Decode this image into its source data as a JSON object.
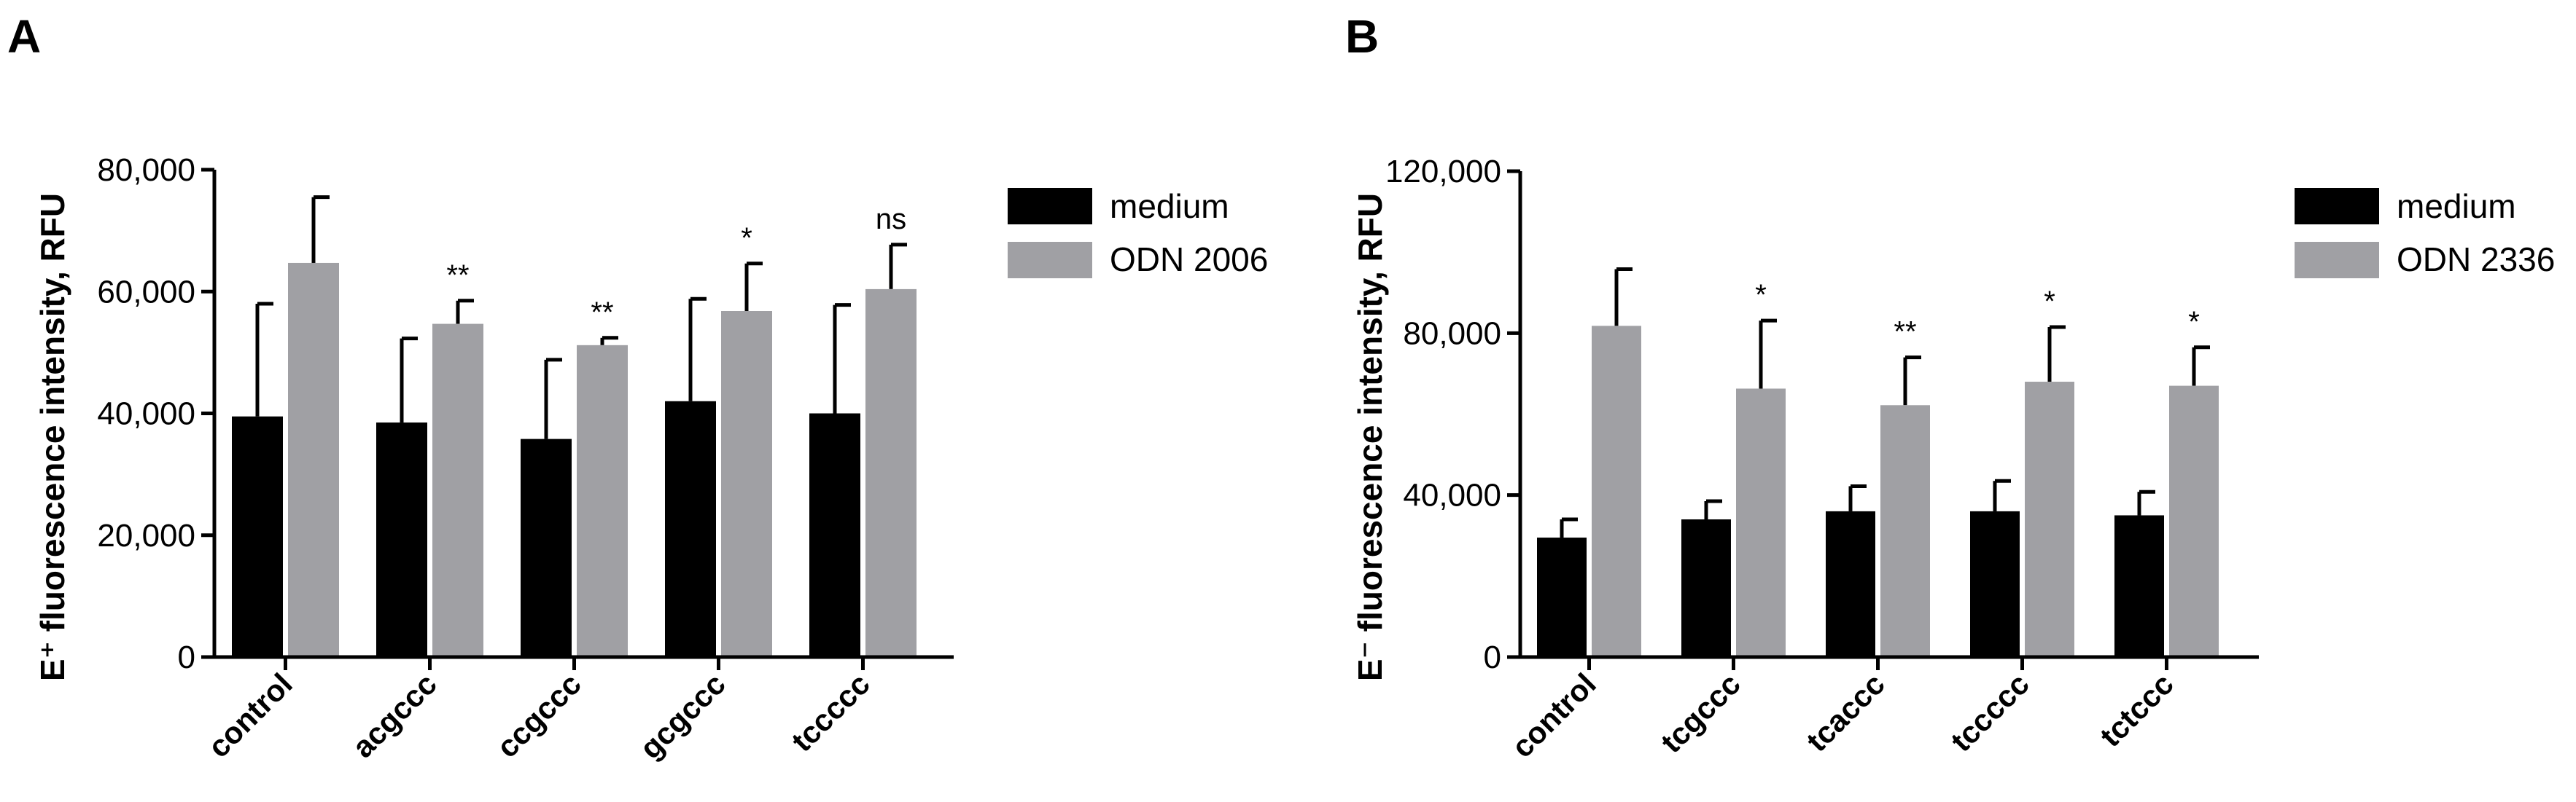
{
  "chart_data": [
    {
      "type": "bar",
      "panel_label": "A",
      "ylabel": "E⁺ fluorescence intensity, RFU",
      "ylim": [
        0,
        80000
      ],
      "y_ticks": [
        0,
        20000,
        40000,
        60000,
        80000
      ],
      "y_tick_labels": [
        "0",
        "20,000",
        "40,000",
        "60,000",
        "80,000"
      ],
      "categories": [
        "control",
        "acgccc",
        "ccgccc",
        "gcgccc",
        "tccccc"
      ],
      "series": [
        {
          "name": "medium",
          "color": "#000000",
          "values": [
            39500,
            38500,
            35800,
            42000,
            40000
          ],
          "errors": [
            18500,
            13800,
            13000,
            16800,
            17800
          ]
        },
        {
          "name": "ODN 2006",
          "color": "#a0a0a4",
          "values": [
            64700,
            54700,
            51200,
            56800,
            60400
          ],
          "errors": [
            10800,
            3800,
            1200,
            7800,
            7300
          ]
        }
      ],
      "annotations": [
        "",
        "**",
        "**",
        "*",
        "ns"
      ],
      "legend": [
        "medium",
        "ODN 2006"
      ]
    },
    {
      "type": "bar",
      "panel_label": "B",
      "ylabel": "E⁻ fluorescence intensity, RFU",
      "ylim": [
        0,
        120000
      ],
      "y_ticks": [
        0,
        40000,
        80000,
        120000
      ],
      "y_tick_labels": [
        "0",
        "40,000",
        "80,000",
        "120,000"
      ],
      "categories": [
        "control",
        "tcgccc",
        "tcaccc",
        "tccccc",
        "tctccc"
      ],
      "series": [
        {
          "name": "medium",
          "color": "#000000",
          "values": [
            29500,
            34000,
            36000,
            36000,
            35000
          ],
          "errors": [
            4500,
            4500,
            6200,
            7500,
            5800
          ]
        },
        {
          "name": "ODN 2336",
          "color": "#a0a0a4",
          "values": [
            81800,
            66300,
            62200,
            68000,
            67000
          ],
          "errors": [
            14000,
            16800,
            11800,
            13500,
            9500
          ]
        }
      ],
      "annotations": [
        "",
        "*",
        "**",
        "*",
        "*"
      ],
      "legend": [
        "medium",
        "ODN 2336"
      ]
    }
  ]
}
